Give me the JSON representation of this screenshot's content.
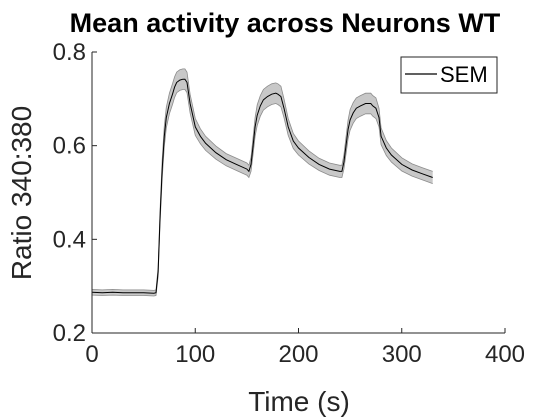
{
  "colors": {
    "line": "#000000",
    "band": "#c8c8c8",
    "band_edge": "#8c8c8c",
    "axis": "#262626"
  },
  "chart_data": {
    "type": "line",
    "title": "Mean activity across Neurons WT",
    "xlabel": "Time (s)",
    "ylabel": "Ratio 340:380",
    "xlim": [
      0,
      400
    ],
    "ylim": [
      0.2,
      0.8
    ],
    "x_ticks": [
      0,
      100,
      200,
      300,
      400
    ],
    "y_ticks": [
      0.2,
      0.4,
      0.6,
      0.8
    ],
    "x_tick_labels": [
      "0",
      "100",
      "200",
      "300",
      "400"
    ],
    "y_tick_labels": [
      "0.2",
      "0.4",
      "0.6",
      "0.8"
    ],
    "grid": false,
    "legend": {
      "position": "top-right",
      "entries": [
        "SEM"
      ]
    },
    "series": [
      {
        "name": "SEM",
        "x": [
          0,
          10,
          20,
          30,
          40,
          50,
          60,
          62,
          64,
          66,
          68,
          70,
          72,
          75,
          78,
          80,
          82,
          85,
          88,
          90,
          92,
          95,
          100,
          105,
          110,
          120,
          130,
          140,
          150,
          152,
          154,
          156,
          158,
          160,
          163,
          166,
          170,
          174,
          178,
          180,
          183,
          186,
          190,
          195,
          200,
          210,
          220,
          230,
          240,
          242,
          244,
          246,
          248,
          250,
          253,
          256,
          260,
          265,
          270,
          272,
          275,
          278,
          280,
          285,
          290,
          300,
          310,
          320,
          330
        ],
        "y": [
          0.287,
          0.286,
          0.287,
          0.286,
          0.286,
          0.286,
          0.285,
          0.286,
          0.33,
          0.45,
          0.55,
          0.62,
          0.66,
          0.69,
          0.71,
          0.725,
          0.735,
          0.74,
          0.742,
          0.742,
          0.735,
          0.69,
          0.64,
          0.62,
          0.605,
          0.585,
          0.57,
          0.56,
          0.55,
          0.545,
          0.56,
          0.6,
          0.64,
          0.665,
          0.685,
          0.698,
          0.705,
          0.71,
          0.712,
          0.71,
          0.705,
          0.68,
          0.64,
          0.61,
          0.595,
          0.575,
          0.56,
          0.55,
          0.545,
          0.545,
          0.565,
          0.6,
          0.635,
          0.655,
          0.67,
          0.68,
          0.685,
          0.69,
          0.69,
          0.685,
          0.68,
          0.66,
          0.62,
          0.595,
          0.58,
          0.56,
          0.548,
          0.54,
          0.532
        ],
        "sem": [
          0.006,
          0.006,
          0.006,
          0.006,
          0.006,
          0.006,
          0.006,
          0.006,
          0.01,
          0.015,
          0.02,
          0.022,
          0.022,
          0.022,
          0.022,
          0.022,
          0.022,
          0.022,
          0.022,
          0.022,
          0.022,
          0.02,
          0.018,
          0.016,
          0.015,
          0.014,
          0.013,
          0.013,
          0.013,
          0.013,
          0.015,
          0.018,
          0.02,
          0.022,
          0.022,
          0.022,
          0.022,
          0.022,
          0.022,
          0.022,
          0.022,
          0.02,
          0.018,
          0.016,
          0.015,
          0.014,
          0.013,
          0.013,
          0.013,
          0.013,
          0.015,
          0.018,
          0.02,
          0.022,
          0.022,
          0.022,
          0.022,
          0.022,
          0.022,
          0.022,
          0.022,
          0.02,
          0.018,
          0.016,
          0.015,
          0.014,
          0.013,
          0.013,
          0.013
        ]
      }
    ]
  }
}
